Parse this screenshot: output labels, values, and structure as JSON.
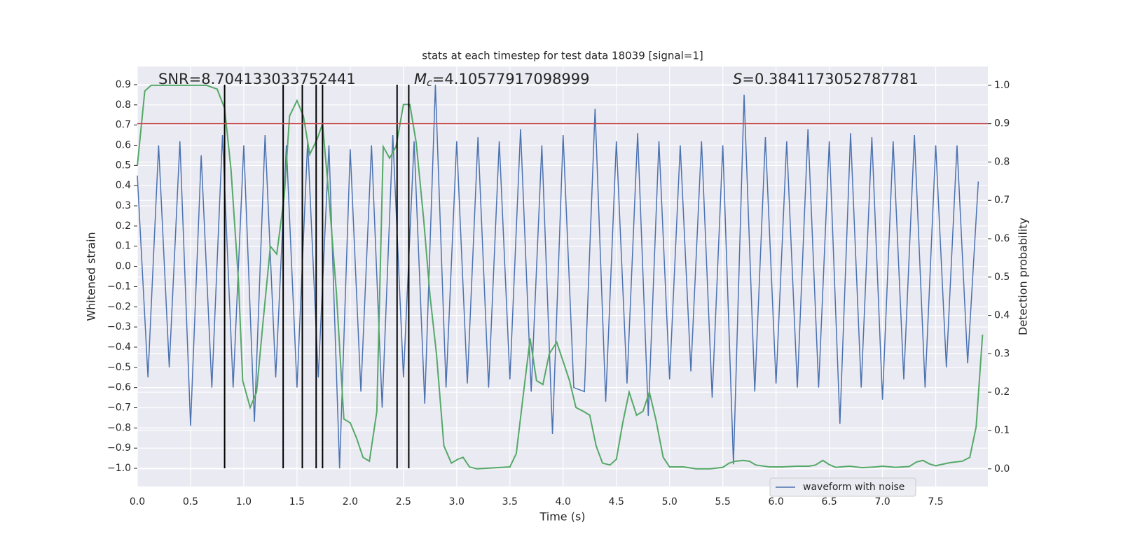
{
  "chart_data": {
    "type": "line",
    "title": "stats at each timestep for test data 18039 [signal=1]",
    "xlabel": "Time (s)",
    "ylabel": "Whitened strain",
    "y2label": "Detection probability",
    "annotations": [
      {
        "text": "SNR=8.704133033752441"
      },
      {
        "symbol": "M",
        "subscript": "c",
        "text": "=4.10577917098999"
      },
      {
        "symbol": "S",
        "text": "=0.3841173052787781"
      }
    ],
    "xlim": [
      0,
      7.99
    ],
    "ylim": [
      -1.09,
      0.99
    ],
    "y2lim": [
      -0.046,
      1.049
    ],
    "xticks": [
      {
        "value": 0,
        "label": "0.0"
      },
      0.5,
      {
        "value": 1,
        "label": "1.0"
      },
      1.5,
      {
        "value": 2,
        "label": "2.0"
      },
      2.5,
      {
        "value": 3,
        "label": "3.0"
      },
      3.5,
      {
        "value": 4,
        "label": "4.0"
      },
      4.5,
      {
        "value": 5,
        "label": "5.0"
      },
      5.5,
      {
        "value": 6,
        "label": "6.0"
      },
      6.5,
      {
        "value": 7,
        "label": "7.0"
      },
      7.5
    ],
    "yticks": [
      {
        "value": -1,
        "label": "−1.0"
      },
      {
        "value": -0.9,
        "label": "−0.9"
      },
      {
        "value": -0.8,
        "label": "−0.8"
      },
      {
        "value": -0.7,
        "label": "−0.7"
      },
      {
        "value": -0.6,
        "label": "−0.6"
      },
      {
        "value": -0.5,
        "label": "−0.5"
      },
      {
        "value": -0.4,
        "label": "−0.4"
      },
      {
        "value": -0.3,
        "label": "−0.3"
      },
      {
        "value": -0.2,
        "label": "−0.2"
      },
      {
        "value": -0.1,
        "label": "−0.1"
      },
      {
        "value": 0,
        "label": "0.0"
      },
      0.1,
      0.2,
      0.3,
      0.4,
      0.5,
      0.6,
      0.7,
      0.8,
      0.9
    ],
    "y2ticks": [
      {
        "value": 0,
        "label": "0.0"
      },
      0.1,
      0.2,
      0.3,
      0.4,
      0.5,
      0.6,
      0.7,
      0.8,
      0.9,
      {
        "value": 1,
        "label": "1.0"
      }
    ],
    "grid": true,
    "legend": "lower right",
    "series": [
      {
        "name": "waveform with noise",
        "color": "#4c72b0",
        "x": [
          0.0,
          0.1,
          0.2,
          0.3,
          0.4,
          0.5,
          0.6,
          0.7,
          0.8,
          0.9,
          1.0,
          1.1,
          1.2,
          1.3,
          1.4,
          1.5,
          1.6,
          1.7,
          1.8,
          1.9,
          2.0,
          2.1,
          2.2,
          2.3,
          2.4,
          2.5,
          2.6,
          2.7,
          2.8,
          2.9,
          3.0,
          3.1,
          3.2,
          3.3,
          3.4,
          3.5,
          3.6,
          3.7,
          3.8,
          3.9,
          4.0,
          4.1,
          4.2,
          4.3,
          4.4,
          4.5,
          4.6,
          4.7,
          4.8,
          4.9,
          5.0,
          5.1,
          5.2,
          5.3,
          5.4,
          5.5,
          5.6,
          5.7,
          5.8,
          5.9,
          6.0,
          6.1,
          6.2,
          6.3,
          6.4,
          6.5,
          6.6,
          6.7,
          6.8,
          6.9,
          7.0,
          7.1,
          7.2,
          7.3,
          7.4,
          7.5,
          7.6,
          7.7,
          7.8,
          7.9
        ],
        "values": [
          0.45,
          -0.55,
          0.6,
          -0.5,
          0.62,
          -0.79,
          0.55,
          -0.6,
          0.65,
          -0.6,
          0.6,
          -0.77,
          0.65,
          -0.55,
          0.6,
          -0.6,
          0.62,
          -0.55,
          0.6,
          -1.0,
          0.58,
          -0.62,
          0.6,
          -0.7,
          0.65,
          -0.55,
          0.62,
          -0.68,
          0.9,
          -0.6,
          0.62,
          -0.58,
          0.64,
          -0.6,
          0.62,
          -0.56,
          0.68,
          -0.62,
          0.6,
          -0.83,
          0.65,
          -0.6,
          -0.62,
          0.78,
          -0.67,
          0.62,
          -0.58,
          0.66,
          -0.74,
          0.62,
          -0.56,
          0.6,
          -0.52,
          0.62,
          -0.65,
          0.6,
          -0.98,
          0.85,
          -0.62,
          0.64,
          -0.58,
          0.62,
          -0.6,
          0.68,
          -0.6,
          0.62,
          -0.78,
          0.66,
          -0.6,
          0.64,
          -0.66,
          0.62,
          -0.56,
          0.65,
          -0.6,
          0.6,
          -0.5,
          0.6,
          -0.48,
          0.42
        ]
      },
      {
        "color": "#55a868",
        "axis": "y2",
        "x": [
          0,
          0.07,
          0.13,
          0.65,
          0.75,
          0.82,
          0.88,
          0.95,
          0.99,
          1.06,
          1.12,
          1.18,
          1.25,
          1.31,
          1.38,
          1.43,
          1.5,
          1.56,
          1.62,
          1.69,
          1.74,
          1.8,
          1.87,
          1.94,
          2.0,
          2.06,
          2.12,
          2.18,
          2.25,
          2.31,
          2.37,
          2.43,
          2.5,
          2.56,
          2.62,
          2.69,
          2.75,
          2.81,
          2.88,
          2.95,
          3.01,
          3.06,
          3.12,
          3.19,
          3.5,
          3.56,
          3.62,
          3.69,
          3.75,
          3.81,
          3.87,
          3.94,
          4.0,
          4.06,
          4.12,
          4.19,
          4.25,
          4.31,
          4.37,
          4.44,
          4.5,
          4.56,
          4.62,
          4.69,
          4.75,
          4.81,
          4.87,
          4.94,
          5.0,
          5.13,
          5.25,
          5.38,
          5.5,
          5.56,
          5.62,
          5.69,
          5.75,
          5.81,
          5.94,
          6.06,
          6.19,
          6.31,
          6.37,
          6.44,
          6.5,
          6.56,
          6.69,
          6.81,
          6.94,
          7.0,
          7.12,
          7.25,
          7.32,
          7.38,
          7.44,
          7.5,
          7.63,
          7.75,
          7.82,
          7.88,
          7.94
        ],
        "values": [
          0.79,
          0.985,
          1.0,
          1.0,
          0.99,
          0.94,
          0.78,
          0.49,
          0.23,
          0.16,
          0.2,
          0.38,
          0.58,
          0.56,
          0.71,
          0.92,
          0.96,
          0.92,
          0.82,
          0.86,
          0.9,
          0.71,
          0.46,
          0.13,
          0.12,
          0.08,
          0.03,
          0.02,
          0.15,
          0.84,
          0.81,
          0.84,
          0.95,
          0.95,
          0.85,
          0.65,
          0.45,
          0.3,
          0.06,
          0.015,
          0.025,
          0.03,
          0.005,
          0.0,
          0.005,
          0.04,
          0.18,
          0.34,
          0.23,
          0.22,
          0.3,
          0.33,
          0.28,
          0.23,
          0.16,
          0.15,
          0.14,
          0.06,
          0.015,
          0.01,
          0.025,
          0.12,
          0.2,
          0.14,
          0.15,
          0.2,
          0.13,
          0.03,
          0.005,
          0.005,
          0.0,
          0.0,
          0.004,
          0.015,
          0.02,
          0.022,
          0.02,
          0.01,
          0.005,
          0.005,
          0.007,
          0.007,
          0.01,
          0.022,
          0.011,
          0.004,
          0.007,
          0.003,
          0.005,
          0.007,
          0.004,
          0.006,
          0.018,
          0.022,
          0.013,
          0.008,
          0.016,
          0.02,
          0.03,
          0.11,
          0.35
        ]
      }
    ],
    "vlines": {
      "x": [
        0.82,
        1.37,
        1.55,
        1.68,
        1.74,
        2.44,
        2.55
      ],
      "ymin": -1.0,
      "ymax": 0.9,
      "color": "#000000"
    },
    "hline": {
      "y2": 0.9,
      "color": "#c44e52"
    }
  }
}
